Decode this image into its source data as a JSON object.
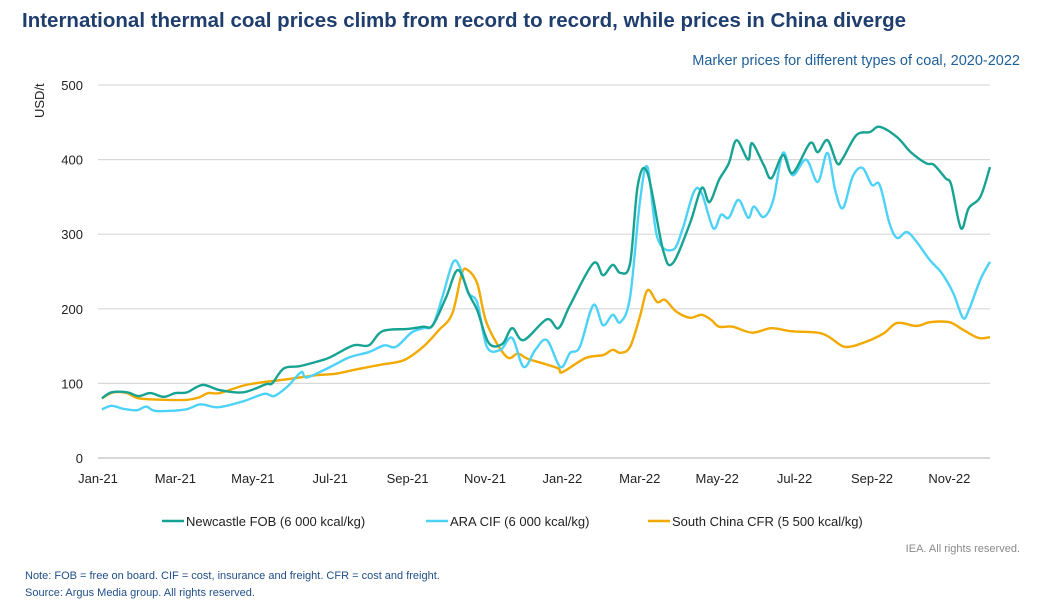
{
  "header": {
    "title": "International thermal coal prices climb from record to record, while prices in China diverge",
    "subtitle": "Marker prices for different types of coal, 2020-2022"
  },
  "footer": {
    "rights": "IEA. All rights reserved.",
    "note": "Note: FOB = free on board. CIF = cost, insurance and freight. CFR = cost and freight.",
    "source": "Source: Argus Media group. All rights reserved."
  },
  "chart_data": {
    "type": "line",
    "title": "International thermal coal prices climb from record to record, while prices in China diverge",
    "subtitle": "Marker prices for different types of coal, 2020-2022",
    "xlabel": "",
    "ylabel": "USD/t",
    "x_unit": "months since Jan-2021",
    "xlim": [
      0,
      23.05
    ],
    "ylim": [
      0,
      500
    ],
    "yticks": [
      0,
      100,
      200,
      300,
      400,
      500
    ],
    "xticks": [
      {
        "x": 0,
        "label": "Jan-21"
      },
      {
        "x": 2,
        "label": "Mar-21"
      },
      {
        "x": 4,
        "label": "May-21"
      },
      {
        "x": 6,
        "label": "Jul-21"
      },
      {
        "x": 8,
        "label": "Sep-21"
      },
      {
        "x": 10,
        "label": "Nov-21"
      },
      {
        "x": 12,
        "label": "Jan-22"
      },
      {
        "x": 14,
        "label": "Mar-22"
      },
      {
        "x": 16,
        "label": "May-22"
      },
      {
        "x": 18,
        "label": "Jul-22"
      },
      {
        "x": 20,
        "label": "Sep-22"
      },
      {
        "x": 22,
        "label": "Nov-22"
      }
    ],
    "grid": true,
    "legend_position": "bottom",
    "series": [
      {
        "name": "Newcastle FOB (6 000 kcal/kg)",
        "color": "#17a393",
        "points": [
          [
            0.1,
            80
          ],
          [
            0.35,
            88
          ],
          [
            0.75,
            88
          ],
          [
            1.05,
            83
          ],
          [
            1.35,
            87
          ],
          [
            1.7,
            82
          ],
          [
            2.0,
            87
          ],
          [
            2.3,
            88
          ],
          [
            2.7,
            98
          ],
          [
            3.15,
            91
          ],
          [
            3.75,
            88
          ],
          [
            4.35,
            99
          ],
          [
            4.5,
            100
          ],
          [
            4.8,
            120
          ],
          [
            5.2,
            123
          ],
          [
            5.65,
            129
          ],
          [
            6.0,
            135
          ],
          [
            6.6,
            151
          ],
          [
            7.0,
            151
          ],
          [
            7.35,
            170
          ],
          [
            8.0,
            173
          ],
          [
            8.4,
            176
          ],
          [
            8.65,
            178
          ],
          [
            9.0,
            216
          ],
          [
            9.3,
            252
          ],
          [
            9.6,
            218
          ],
          [
            9.8,
            198
          ],
          [
            10.1,
            154
          ],
          [
            10.45,
            153
          ],
          [
            10.7,
            174
          ],
          [
            11.0,
            158
          ],
          [
            11.6,
            186
          ],
          [
            11.9,
            174
          ],
          [
            12.2,
            205
          ],
          [
            12.8,
            261
          ],
          [
            13.05,
            245
          ],
          [
            13.3,
            259
          ],
          [
            13.5,
            248
          ],
          [
            13.75,
            261
          ],
          [
            13.95,
            366
          ],
          [
            14.2,
            382
          ],
          [
            14.6,
            279
          ],
          [
            14.85,
            261
          ],
          [
            15.3,
            315
          ],
          [
            15.6,
            362
          ],
          [
            15.8,
            343
          ],
          [
            16.05,
            373
          ],
          [
            16.3,
            395
          ],
          [
            16.5,
            426
          ],
          [
            16.8,
            400
          ],
          [
            16.9,
            422
          ],
          [
            17.2,
            393
          ],
          [
            17.4,
            375
          ],
          [
            17.7,
            406
          ],
          [
            17.95,
            382
          ],
          [
            18.4,
            422
          ],
          [
            18.6,
            410
          ],
          [
            18.85,
            426
          ],
          [
            19.1,
            395
          ],
          [
            19.25,
            402
          ],
          [
            19.6,
            433
          ],
          [
            19.95,
            437
          ],
          [
            20.2,
            444
          ],
          [
            20.65,
            430
          ],
          [
            21.0,
            410
          ],
          [
            21.4,
            395
          ],
          [
            21.6,
            393
          ],
          [
            21.9,
            375
          ],
          [
            22.05,
            366
          ],
          [
            22.3,
            308
          ],
          [
            22.5,
            335
          ],
          [
            22.8,
            350
          ],
          [
            23.05,
            390
          ]
        ]
      },
      {
        "name": "ARA CIF (6 000 kcal/kg)",
        "color": "#4dd2f7",
        "points": [
          [
            0.1,
            65
          ],
          [
            0.35,
            70
          ],
          [
            0.65,
            66
          ],
          [
            1.0,
            64
          ],
          [
            1.25,
            69
          ],
          [
            1.5,
            63
          ],
          [
            2.25,
            65
          ],
          [
            2.65,
            72
          ],
          [
            3.1,
            68
          ],
          [
            3.75,
            76
          ],
          [
            4.3,
            86
          ],
          [
            4.55,
            83
          ],
          [
            4.9,
            96
          ],
          [
            5.25,
            115
          ],
          [
            5.4,
            108
          ],
          [
            6.0,
            122
          ],
          [
            6.5,
            135
          ],
          [
            7.0,
            142
          ],
          [
            7.4,
            151
          ],
          [
            7.7,
            149
          ],
          [
            8.1,
            168
          ],
          [
            8.4,
            174
          ],
          [
            8.65,
            178
          ],
          [
            8.9,
            216
          ],
          [
            9.17,
            262
          ],
          [
            9.35,
            256
          ],
          [
            9.56,
            222
          ],
          [
            9.8,
            208
          ],
          [
            10.05,
            149
          ],
          [
            10.4,
            145
          ],
          [
            10.7,
            161
          ],
          [
            11.0,
            122
          ],
          [
            11.3,
            145
          ],
          [
            11.6,
            158
          ],
          [
            11.95,
            122
          ],
          [
            12.2,
            141
          ],
          [
            12.45,
            149
          ],
          [
            12.8,
            205
          ],
          [
            13.05,
            178
          ],
          [
            13.3,
            192
          ],
          [
            13.5,
            182
          ],
          [
            13.75,
            216
          ],
          [
            14.0,
            342
          ],
          [
            14.2,
            390
          ],
          [
            14.45,
            296
          ],
          [
            14.85,
            279
          ],
          [
            15.1,
            306
          ],
          [
            15.4,
            357
          ],
          [
            15.6,
            355
          ],
          [
            15.9,
            308
          ],
          [
            16.1,
            326
          ],
          [
            16.3,
            322
          ],
          [
            16.55,
            346
          ],
          [
            16.8,
            322
          ],
          [
            16.95,
            337
          ],
          [
            17.2,
            323
          ],
          [
            17.45,
            346
          ],
          [
            17.7,
            409
          ],
          [
            17.95,
            379
          ],
          [
            18.3,
            400
          ],
          [
            18.6,
            370
          ],
          [
            18.85,
            409
          ],
          [
            19.05,
            359
          ],
          [
            19.25,
            335
          ],
          [
            19.5,
            377
          ],
          [
            19.75,
            389
          ],
          [
            20.0,
            366
          ],
          [
            20.2,
            366
          ],
          [
            20.45,
            315
          ],
          [
            20.65,
            295
          ],
          [
            20.9,
            303
          ],
          [
            21.15,
            290
          ],
          [
            21.5,
            265
          ],
          [
            21.8,
            248
          ],
          [
            22.1,
            221
          ],
          [
            22.35,
            188
          ],
          [
            22.5,
            198
          ],
          [
            22.8,
            239
          ],
          [
            23.05,
            263
          ]
        ]
      },
      {
        "name": "South China CFR (5 500 kcal/kg)",
        "color": "#f2a900",
        "points": [
          [
            0.1,
            80
          ],
          [
            0.4,
            88
          ],
          [
            0.75,
            87
          ],
          [
            1.05,
            80
          ],
          [
            1.7,
            78
          ],
          [
            2.3,
            78
          ],
          [
            2.6,
            81
          ],
          [
            2.85,
            87
          ],
          [
            3.15,
            87
          ],
          [
            3.75,
            97
          ],
          [
            4.3,
            102
          ],
          [
            4.5,
            103
          ],
          [
            4.95,
            106
          ],
          [
            5.65,
            111
          ],
          [
            6.15,
            113
          ],
          [
            6.7,
            119
          ],
          [
            7.3,
            125
          ],
          [
            7.9,
            131
          ],
          [
            8.4,
            149
          ],
          [
            8.8,
            171
          ],
          [
            9.15,
            193
          ],
          [
            9.4,
            247
          ],
          [
            9.55,
            252
          ],
          [
            9.8,
            234
          ],
          [
            10.05,
            180
          ],
          [
            10.55,
            136
          ],
          [
            10.85,
            140
          ],
          [
            11.1,
            133
          ],
          [
            11.55,
            126
          ],
          [
            11.9,
            120
          ],
          [
            12.0,
            115
          ],
          [
            12.6,
            134
          ],
          [
            13.05,
            138
          ],
          [
            13.3,
            145
          ],
          [
            13.5,
            141
          ],
          [
            13.75,
            149
          ],
          [
            14.0,
            189
          ],
          [
            14.2,
            225
          ],
          [
            14.45,
            209
          ],
          [
            14.65,
            212
          ],
          [
            14.95,
            196
          ],
          [
            15.3,
            188
          ],
          [
            15.6,
            192
          ],
          [
            15.85,
            185
          ],
          [
            16.05,
            176
          ],
          [
            16.4,
            176
          ],
          [
            16.9,
            168
          ],
          [
            17.4,
            174
          ],
          [
            17.9,
            170
          ],
          [
            18.6,
            168
          ],
          [
            18.9,
            162
          ],
          [
            19.3,
            149
          ],
          [
            19.8,
            155
          ],
          [
            20.3,
            167
          ],
          [
            20.65,
            181
          ],
          [
            21.15,
            177
          ],
          [
            21.5,
            182
          ],
          [
            22.0,
            182
          ],
          [
            22.35,
            172
          ],
          [
            22.75,
            161
          ],
          [
            23.05,
            162
          ]
        ]
      }
    ]
  }
}
